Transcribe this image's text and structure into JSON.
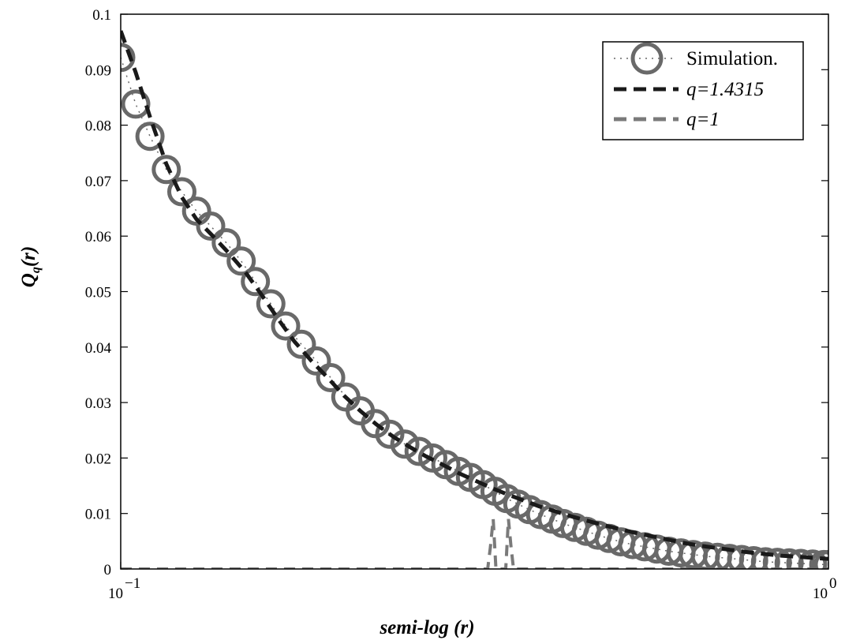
{
  "chart_data": {
    "type": "line",
    "x_scale": "log",
    "xlabel": "semi-log (r)",
    "ylabel_main": "Q",
    "ylabel_sub": "q",
    "ylabel_tail": "(r)",
    "xlim": [
      0.1,
      1.0
    ],
    "ylim": [
      0,
      0.1
    ],
    "x_ticks": [
      {
        "base": "10",
        "exp": "−1",
        "value": 0.1
      },
      {
        "base": "10",
        "exp": "0",
        "value": 1.0
      }
    ],
    "y_ticks": [
      "0",
      "0.01",
      "0.02",
      "0.03",
      "0.04",
      "0.05",
      "0.06",
      "0.07",
      "0.08",
      "0.09",
      "0.1"
    ],
    "y_tick_values": [
      0,
      0.01,
      0.02,
      0.03,
      0.04,
      0.05,
      0.06,
      0.07,
      0.08,
      0.09,
      0.1
    ],
    "grid": false,
    "legend_position": "top-right",
    "series": [
      {
        "name": "Simulation.",
        "style": "circles",
        "color": "#696969",
        "x": [
          0.1,
          0.105,
          0.11,
          0.116,
          0.122,
          0.128,
          0.134,
          0.141,
          0.148,
          0.155,
          0.163,
          0.171,
          0.18,
          0.189,
          0.198,
          0.208,
          0.218,
          0.229,
          0.24,
          0.252,
          0.264,
          0.276,
          0.288,
          0.3,
          0.312,
          0.325,
          0.338,
          0.351,
          0.364,
          0.378,
          0.392,
          0.407,
          0.422,
          0.438,
          0.455,
          0.472,
          0.49,
          0.509,
          0.529,
          0.55,
          0.572,
          0.595,
          0.619,
          0.644,
          0.67,
          0.697,
          0.725,
          0.754,
          0.784,
          0.815,
          0.847,
          0.88,
          0.914,
          0.95,
          0.985,
          1.0
        ],
        "y": [
          0.0922,
          0.0838,
          0.078,
          0.072,
          0.068,
          0.0645,
          0.0618,
          0.0588,
          0.0555,
          0.0518,
          0.0478,
          0.0438,
          0.0405,
          0.0375,
          0.0345,
          0.031,
          0.0285,
          0.0262,
          0.0243,
          0.0225,
          0.0212,
          0.02,
          0.0188,
          0.0176,
          0.0165,
          0.0152,
          0.014,
          0.0127,
          0.0117,
          0.0107,
          0.0098,
          0.009,
          0.0082,
          0.0075,
          0.0068,
          0.0061,
          0.0055,
          0.0049,
          0.0044,
          0.004,
          0.0036,
          0.0032,
          0.0029,
          0.0026,
          0.0023,
          0.0021,
          0.0019,
          0.0017,
          0.0015,
          0.0013,
          0.0012,
          0.0011,
          0.001,
          0.0009,
          0.0008,
          0.0008
        ]
      },
      {
        "name": "q=1.4315",
        "style": "dashed",
        "color": "#1a1a1a",
        "x": [
          0.1,
          0.105,
          0.11,
          0.116,
          0.122,
          0.128,
          0.135,
          0.142,
          0.15,
          0.158,
          0.167,
          0.176,
          0.186,
          0.196,
          0.207,
          0.218,
          0.23,
          0.243,
          0.256,
          0.27,
          0.285,
          0.3,
          0.316,
          0.333,
          0.351,
          0.37,
          0.39,
          0.411,
          0.433,
          0.456,
          0.481,
          0.507,
          0.534,
          0.563,
          0.593,
          0.625,
          0.659,
          0.694,
          0.732,
          0.771,
          0.813,
          0.857,
          0.903,
          0.951,
          1.0
        ],
        "y": [
          0.097,
          0.0895,
          0.0815,
          0.073,
          0.067,
          0.063,
          0.06,
          0.057,
          0.0535,
          0.0495,
          0.045,
          0.041,
          0.0375,
          0.0345,
          0.0312,
          0.0285,
          0.026,
          0.0238,
          0.022,
          0.0203,
          0.0188,
          0.0173,
          0.016,
          0.0147,
          0.0135,
          0.0124,
          0.0113,
          0.0104,
          0.0095,
          0.0087,
          0.0079,
          0.0072,
          0.0065,
          0.0059,
          0.0053,
          0.0047,
          0.0042,
          0.0038,
          0.0034,
          0.003,
          0.0027,
          0.0024,
          0.0022,
          0.002,
          0.0018
        ]
      },
      {
        "name": "q=1",
        "style": "dashed",
        "color": "#7a7a7a",
        "x": [
          0.1,
          0.33,
          0.333,
          0.336,
          0.339,
          0.35,
          0.353,
          0.356,
          0.359,
          1.0
        ],
        "y": [
          0.0,
          0.0,
          0.004,
          0.009,
          0.0,
          0.0,
          0.009,
          0.004,
          0.0,
          0.0
        ]
      }
    ]
  }
}
